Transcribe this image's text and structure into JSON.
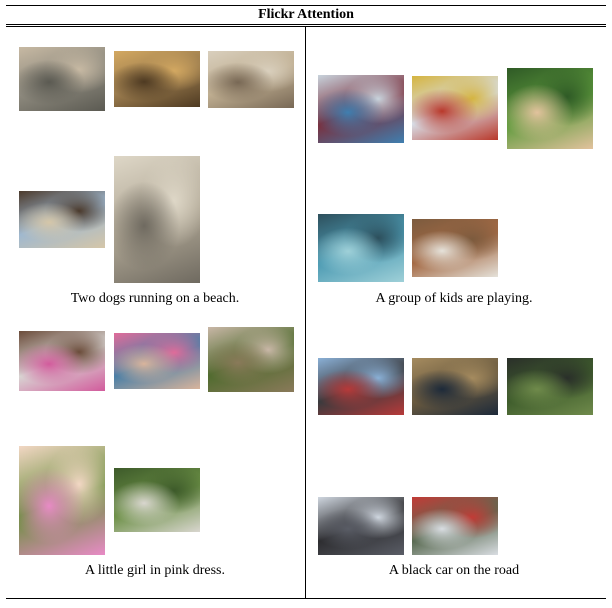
{
  "table": {
    "title": "Flickr Attention",
    "panels": [
      {
        "caption": "Two dogs running on a beach.",
        "photos": [
          {
            "icon": "dogs-beach-water-photo",
            "colors": [
              "#8e8a7e",
              "#5b5a52",
              "#c7b9a3"
            ]
          },
          {
            "icon": "dogs-running-sand-photo",
            "colors": [
              "#9b7c4e",
              "#4e3a22",
              "#d3a861"
            ]
          },
          {
            "icon": "dog-beach-rocks-photo",
            "colors": [
              "#bfae91",
              "#786855",
              "#d9cfbd"
            ]
          },
          {
            "icon": "dogs-jumping-beach-photo",
            "colors": [
              "#9fb8cf",
              "#d5c6a8",
              "#4b3a2c"
            ]
          },
          {
            "icon": "man-dogs-shore-photo",
            "colors": [
              "#b1a896",
              "#6f6a60",
              "#ded7c7"
            ]
          }
        ]
      },
      {
        "caption": "A group of kids are playing.",
        "photos": [
          {
            "icon": "kids-water-slide-photo",
            "colors": [
              "#7a2f3d",
              "#3f7fb0",
              "#c8d3dc"
            ]
          },
          {
            "icon": "playground-climbing-photo",
            "colors": [
              "#d8dfe8",
              "#b9382a",
              "#d5b440"
            ]
          },
          {
            "icon": "kids-on-grass-photo",
            "colors": [
              "#5e9a3c",
              "#e2c29d",
              "#2f5a26"
            ]
          },
          {
            "icon": "kids-swimming-pool-photo",
            "colors": [
              "#4d9bb3",
              "#9fd0d8",
              "#2d4f5c"
            ]
          },
          {
            "icon": "kids-group-outdoor-photo",
            "colors": [
              "#a46a45",
              "#e5e2da",
              "#7c5b3e"
            ]
          }
        ]
      },
      {
        "caption": "A little girl in pink dress.",
        "photos": [
          {
            "icon": "two-girls-room-photo",
            "colors": [
              "#d8d4d2",
              "#d25b9c",
              "#6b4c3a"
            ]
          },
          {
            "icon": "child-in-bath-photo",
            "colors": [
              "#4b7fa6",
              "#d9b49c",
              "#e06c9a"
            ]
          },
          {
            "icon": "child-in-garden-photo",
            "colors": [
              "#4f6b2e",
              "#8a7a5a",
              "#c9b7a7"
            ]
          },
          {
            "icon": "girl-on-swing-photo",
            "colors": [
              "#6b8e3e",
              "#e88bc6",
              "#f2d7c4"
            ]
          },
          {
            "icon": "sofa-on-lawn-photo",
            "colors": [
              "#6b8f45",
              "#d9d6cf",
              "#3d5a2a"
            ]
          }
        ]
      },
      {
        "caption": "A black car on the road",
        "photos": [
          {
            "icon": "boy-in-car-photo",
            "colors": [
              "#3a3a3d",
              "#b73a3a",
              "#8ab0d6"
            ]
          },
          {
            "icon": "rally-car-mud-photo",
            "colors": [
              "#6a5a3f",
              "#1d2a3a",
              "#a58b5f"
            ]
          },
          {
            "icon": "car-forest-trail-photo",
            "colors": [
              "#3f5d2c",
              "#6f8a4b",
              "#2a2f2a"
            ]
          },
          {
            "icon": "child-car-seat-photo",
            "colors": [
              "#2d2d30",
              "#5a5d66",
              "#cfd6df"
            ]
          },
          {
            "icon": "race-car-track-photo",
            "colors": [
              "#5a6b52",
              "#d9dde2",
              "#c23b36"
            ]
          }
        ]
      }
    ]
  }
}
